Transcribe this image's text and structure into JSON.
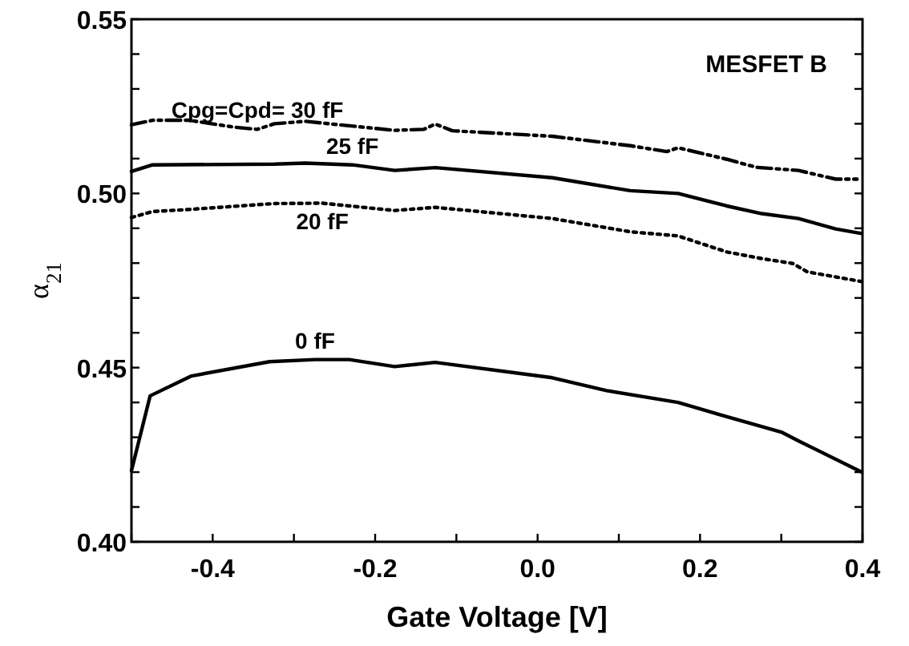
{
  "chart_data": {
    "type": "line",
    "xlabel": "Gate Voltage  [V]",
    "ylabel": "α$_{21}$",
    "annotations": [
      "MESFET B"
    ],
    "xlim": [
      -0.5,
      0.4
    ],
    "ylim": [
      0.4,
      0.55
    ],
    "xticks": [
      {
        "value": -0.5,
        "label": null
      },
      -0.4,
      {
        "value": -0.3,
        "label": null
      },
      -0.2,
      {
        "value": -0.1,
        "label": null
      },
      {
        "value": 0,
        "label": "0.0"
      },
      {
        "value": 0.1,
        "label": null
      },
      0.2,
      {
        "value": 0.3,
        "label": null
      },
      0.4
    ],
    "yticks": [
      {
        "value": 0.4,
        "label": "0.40"
      },
      {
        "value": 0.41,
        "label": null
      },
      {
        "value": 0.42,
        "label": null
      },
      {
        "value": 0.43,
        "label": null
      },
      {
        "value": 0.44,
        "label": null
      },
      0.45,
      {
        "value": 0.46,
        "label": null
      },
      {
        "value": 0.47,
        "label": null
      },
      {
        "value": 0.48,
        "label": null
      },
      {
        "value": 0.49,
        "label": null
      },
      {
        "value": 0.5,
        "label": "0.50"
      },
      {
        "value": 0.51,
        "label": null
      },
      {
        "value": 0.52,
        "label": null
      },
      {
        "value": 0.53,
        "label": null
      },
      {
        "value": 0.54,
        "label": null
      },
      0.55
    ],
    "grid": false,
    "marker": "none",
    "series": [
      {
        "name": "Cpg=Cpd= 30 fF",
        "color": "#000000",
        "line_style": "dashed",
        "x": [
          -0.5,
          -0.474,
          -0.429,
          -0.373,
          -0.345,
          -0.324,
          -0.286,
          -0.176,
          -0.14,
          -0.126,
          -0.105,
          0.018,
          0.114,
          0.159,
          0.173,
          0.233,
          0.269,
          0.321,
          0.367,
          0.399
        ],
        "values": [
          0.5197,
          0.521,
          0.521,
          0.519,
          0.5184,
          0.52,
          0.5207,
          0.5181,
          0.5184,
          0.5199,
          0.518,
          0.5164,
          0.5137,
          0.512,
          0.5131,
          0.5098,
          0.5075,
          0.5066,
          0.5041,
          0.5041
        ]
      },
      {
        "name": "25 fF",
        "color": "#000000",
        "line_style": "solid",
        "x": [
          -0.5,
          -0.474,
          -0.324,
          -0.286,
          -0.228,
          -0.176,
          -0.126,
          0.018,
          0.114,
          0.173,
          0.233,
          0.276,
          0.321,
          0.367,
          0.399
        ],
        "values": [
          0.5063,
          0.5082,
          0.5084,
          0.5087,
          0.5082,
          0.5066,
          0.5074,
          0.5045,
          0.5008,
          0.5,
          0.4964,
          0.4942,
          0.4928,
          0.4898,
          0.4885
        ]
      },
      {
        "name": "20 fF",
        "color": "#000000",
        "line_style": "dotted",
        "x": [
          -0.5,
          -0.474,
          -0.429,
          -0.324,
          -0.265,
          -0.176,
          -0.126,
          0.018,
          0.114,
          0.173,
          0.233,
          0.276,
          0.314,
          0.332,
          0.399
        ],
        "values": [
          0.4931,
          0.4948,
          0.4954,
          0.4971,
          0.4972,
          0.4951,
          0.496,
          0.4928,
          0.489,
          0.4878,
          0.4832,
          0.4813,
          0.4799,
          0.4775,
          0.4747
        ]
      },
      {
        "name": "0 fF",
        "color": "#000000",
        "line_style": "solid",
        "x": [
          -0.5,
          -0.477,
          -0.426,
          -0.33,
          -0.274,
          -0.232,
          -0.176,
          -0.126,
          0.018,
          0.085,
          0.173,
          0.226,
          0.3,
          0.321,
          0.399
        ],
        "values": [
          0.4204,
          0.4419,
          0.4476,
          0.4517,
          0.4523,
          0.4523,
          0.4503,
          0.4515,
          0.4471,
          0.4434,
          0.44,
          0.4364,
          0.4315,
          0.429,
          0.42
        ]
      }
    ]
  }
}
